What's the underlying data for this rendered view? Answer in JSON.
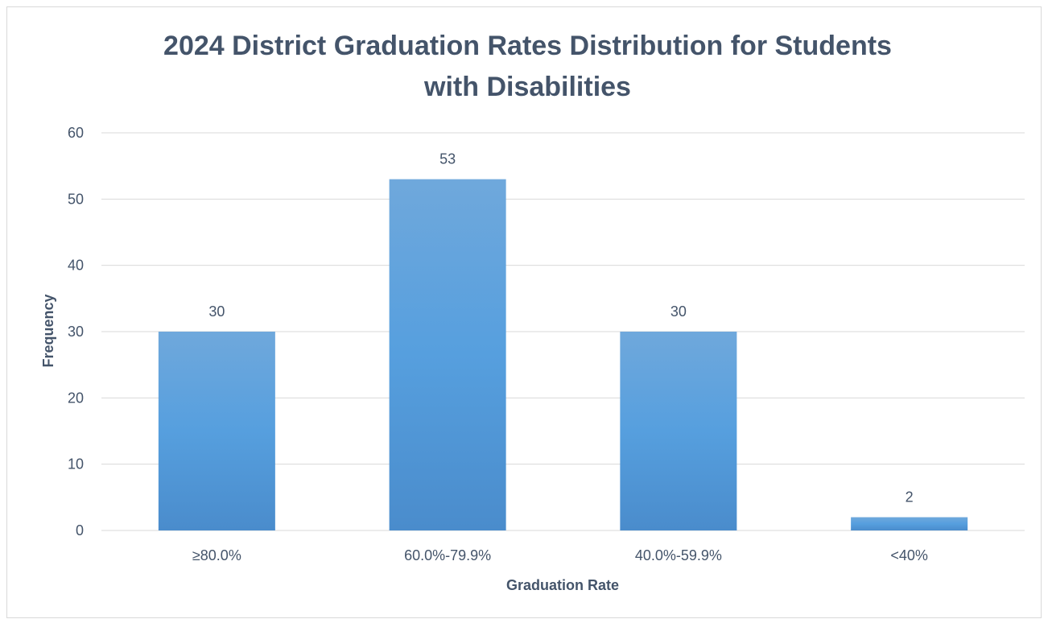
{
  "chart_data": {
    "type": "bar",
    "title_line1": "2024 District Graduation Rates Distribution for Students",
    "title_line2": "with Disabilities",
    "xlabel": "Graduation Rate",
    "ylabel": "Frequency",
    "categories": [
      "≥80.0%",
      "60.0%-79.9%",
      "40.0%-59.9%",
      "<40%"
    ],
    "values": [
      30,
      53,
      30,
      2
    ],
    "ylim": [
      0,
      60
    ],
    "yticks": [
      0,
      10,
      20,
      30,
      40,
      50,
      60
    ],
    "grid": true,
    "legend": "none",
    "bar_color_top": "#6fa8dc",
    "bar_color_bottom": "#4a8ccc",
    "text_color": "#44546a",
    "grid_color": "#d9d9d9"
  }
}
